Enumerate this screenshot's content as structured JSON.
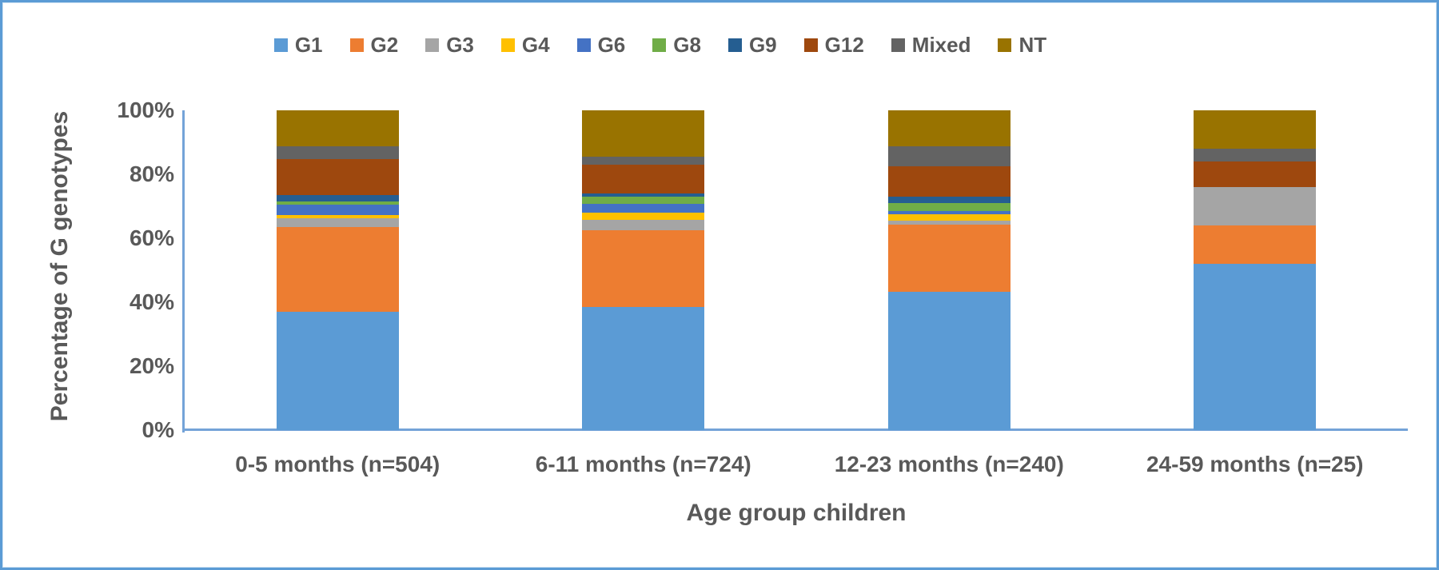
{
  "chart_data": {
    "type": "bar",
    "variant": "100%-stacked-column",
    "title": "",
    "xlabel": "Age group children",
    "ylabel": "Percentage of G genotypes",
    "ylim": [
      0,
      100
    ],
    "y_tick_labels": [
      "0%",
      "20%",
      "40%",
      "60%",
      "80%",
      "100%"
    ],
    "y_tick_values": [
      0,
      20,
      40,
      60,
      80,
      100
    ],
    "grid": false,
    "legend_position": "top",
    "categories": [
      "0-5 months (n=504)",
      "6-11 months (n=724)",
      "12-23 months (n=240)",
      "24-59 months (n=25)"
    ],
    "series": [
      {
        "name": "G1",
        "color": "#5B9BD5",
        "values": [
          37.0,
          38.4,
          43.3,
          52.0
        ]
      },
      {
        "name": "G2",
        "color": "#ED7D31",
        "values": [
          26.6,
          24.2,
          20.9,
          12.0
        ]
      },
      {
        "name": "G3",
        "color": "#A5A5A5",
        "values": [
          2.6,
          3.2,
          1.3,
          12.0
        ]
      },
      {
        "name": "G4",
        "color": "#FFC000",
        "values": [
          1.0,
          2.2,
          2.1,
          0.0
        ]
      },
      {
        "name": "G6",
        "color": "#4472C4",
        "values": [
          3.4,
          2.8,
          0.8,
          0.0
        ]
      },
      {
        "name": "G8",
        "color": "#70AD47",
        "values": [
          0.9,
          2.1,
          2.5,
          0.0
        ]
      },
      {
        "name": "G9",
        "color": "#255E91",
        "values": [
          1.9,
          1.1,
          2.1,
          0.0
        ]
      },
      {
        "name": "G12",
        "color": "#9E480E",
        "values": [
          11.4,
          8.9,
          9.6,
          8.0
        ]
      },
      {
        "name": "Mixed",
        "color": "#636363",
        "values": [
          3.9,
          2.7,
          6.1,
          4.0
        ]
      },
      {
        "name": "NT",
        "color": "#997300",
        "values": [
          11.3,
          14.4,
          11.3,
          12.0
        ]
      }
    ]
  },
  "colors": {
    "chart_border": "#5B9BD5",
    "axis_line": "#74A3D8",
    "text": "#595959",
    "background": "#FFFFFF"
  }
}
